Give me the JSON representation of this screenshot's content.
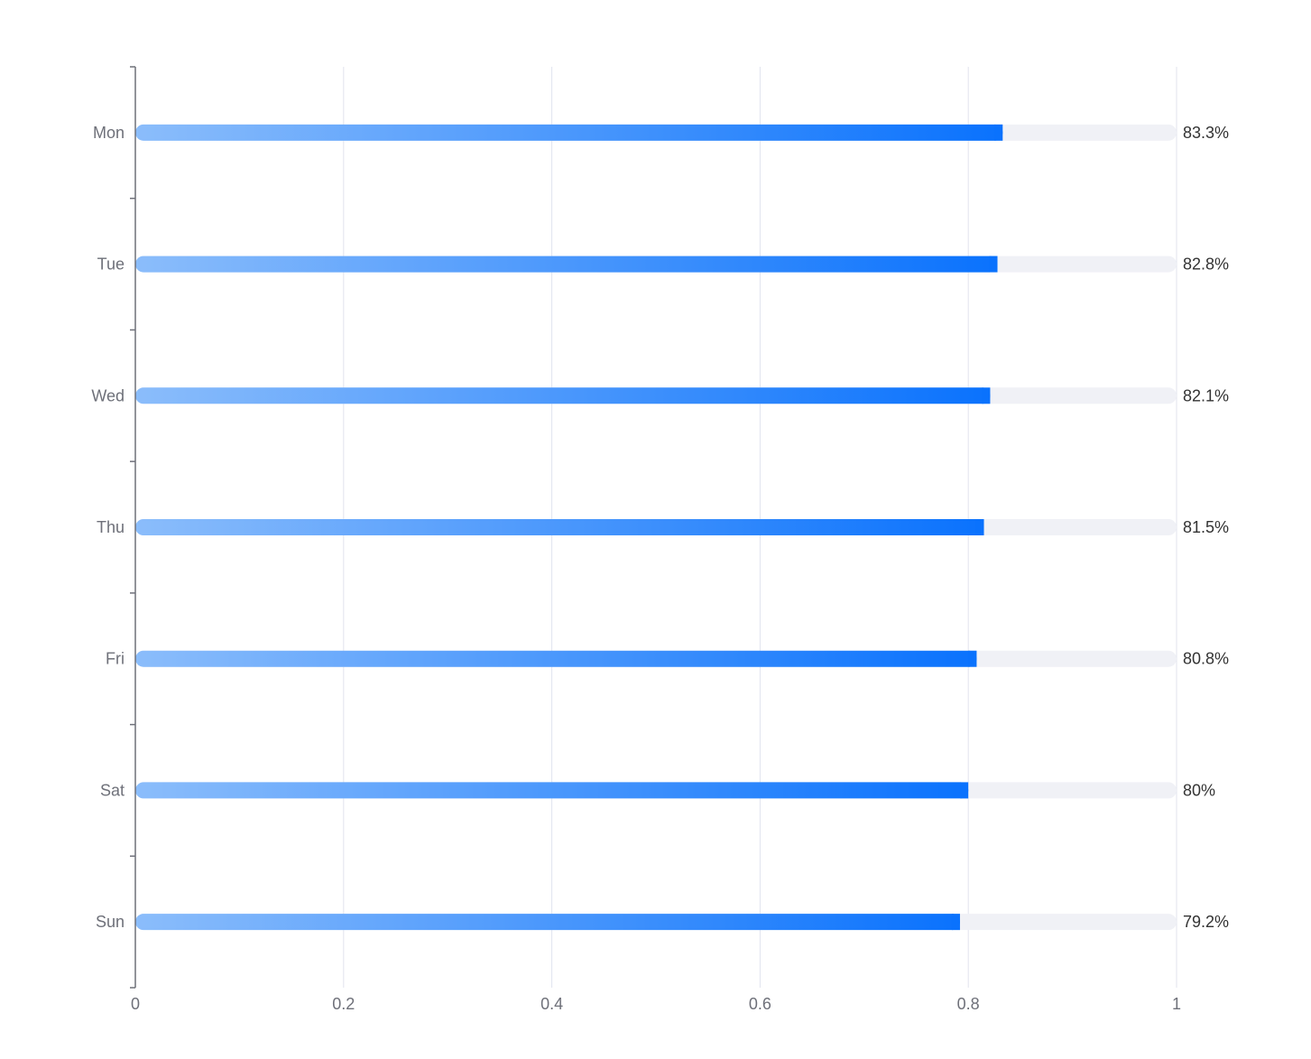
{
  "chart_data": {
    "type": "bar",
    "orientation": "horizontal",
    "title": "",
    "xlabel": "",
    "ylabel": "",
    "xlim": [
      0,
      1
    ],
    "x_ticks": [
      0,
      0.2,
      0.4,
      0.6,
      0.8,
      1
    ],
    "x_tick_labels": [
      "0",
      "0.2",
      "0.4",
      "0.6",
      "0.8",
      "1"
    ],
    "categories": [
      "Mon",
      "Tue",
      "Wed",
      "Thu",
      "Fri",
      "Sat",
      "Sun"
    ],
    "values": [
      0.833,
      0.828,
      0.821,
      0.815,
      0.808,
      0.8,
      0.792
    ],
    "value_labels": [
      "83.3%",
      "82.8%",
      "82.1%",
      "81.5%",
      "80.8%",
      "80%",
      "79.2%"
    ],
    "grid": "vertical",
    "legend": "none",
    "colors": {
      "bar_gradient_start": "#8bbdfb",
      "bar_gradient_end": "#0a72fd",
      "track": "#f0f1f6",
      "grid": "#e0e3ee",
      "axis": "#6e7079",
      "tick_label": "#6e7079",
      "value_label": "#333333"
    }
  }
}
